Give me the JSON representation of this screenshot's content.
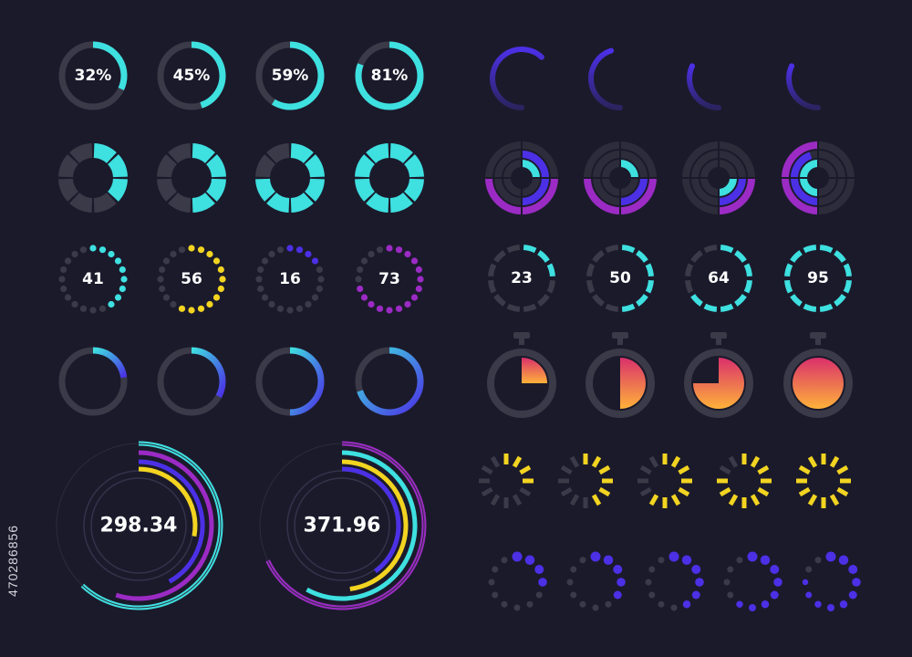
{
  "colors": {
    "background": "#1b1a2b",
    "track": "#3a3a48",
    "cyan": "#3ee0e0",
    "blue": "#3a8cff",
    "violet": "#4b30e6",
    "purple": "#9b2bc4",
    "yellow": "#f2d421",
    "orange": "#ff8a3d",
    "pink": "#e8446e",
    "text": "#ffffff"
  },
  "side_id": "470286856",
  "percent_rings": [
    {
      "label": "32%",
      "progress": 0.32
    },
    {
      "label": "45%",
      "progress": 0.45
    },
    {
      "label": "59%",
      "progress": 0.59
    },
    {
      "label": "81%",
      "progress": 0.81
    }
  ],
  "gradient_arcs": [
    {
      "progress": 0.62
    },
    {
      "progress": 0.45
    },
    {
      "progress": 0.32
    },
    {
      "progress": 0.32
    }
  ],
  "segment_rings": [
    {
      "filled_segments": 3,
      "segments": 8
    },
    {
      "filled_segments": 4,
      "segments": 8
    },
    {
      "filled_segments": 6,
      "segments": 8
    },
    {
      "filled_segments": 8,
      "segments": 8
    }
  ],
  "nested_rings": [
    {
      "variant": 1
    },
    {
      "variant": 2
    },
    {
      "variant": 3
    },
    {
      "variant": 4
    }
  ],
  "dot_rings": [
    {
      "label": "41",
      "progress": 0.41,
      "color": "cyan"
    },
    {
      "label": "56",
      "progress": 0.56,
      "color": "yellow"
    },
    {
      "label": "16",
      "progress": 0.16,
      "color": "violet"
    },
    {
      "label": "73",
      "progress": 0.73,
      "color": "purple"
    }
  ],
  "dash_rings": [
    {
      "label": "23",
      "progress": 0.23
    },
    {
      "label": "50",
      "progress": 0.5
    },
    {
      "label": "64",
      "progress": 0.64
    },
    {
      "label": "95",
      "progress": 0.95
    }
  ],
  "blue_rings": [
    {
      "progress": 0.23
    },
    {
      "progress": 0.33
    },
    {
      "progress": 0.5
    },
    {
      "progress": 0.7
    }
  ],
  "stopwatches": [
    {
      "progress": 0.25
    },
    {
      "progress": 0.5
    },
    {
      "progress": 0.75
    },
    {
      "progress": 1.0
    }
  ],
  "big_gauges": [
    {
      "label": "298.34"
    },
    {
      "label": "371.96"
    }
  ],
  "spinners_yellow": [
    {
      "active_ticks": 4
    },
    {
      "active_ticks": 6
    },
    {
      "active_ticks": 8
    },
    {
      "active_ticks": 10
    },
    {
      "active_ticks": 12
    }
  ],
  "spinners_dots": [
    {
      "active_dots": 4
    },
    {
      "active_dots": 5
    },
    {
      "active_dots": 6
    },
    {
      "active_dots": 8
    },
    {
      "active_dots": 10
    }
  ]
}
